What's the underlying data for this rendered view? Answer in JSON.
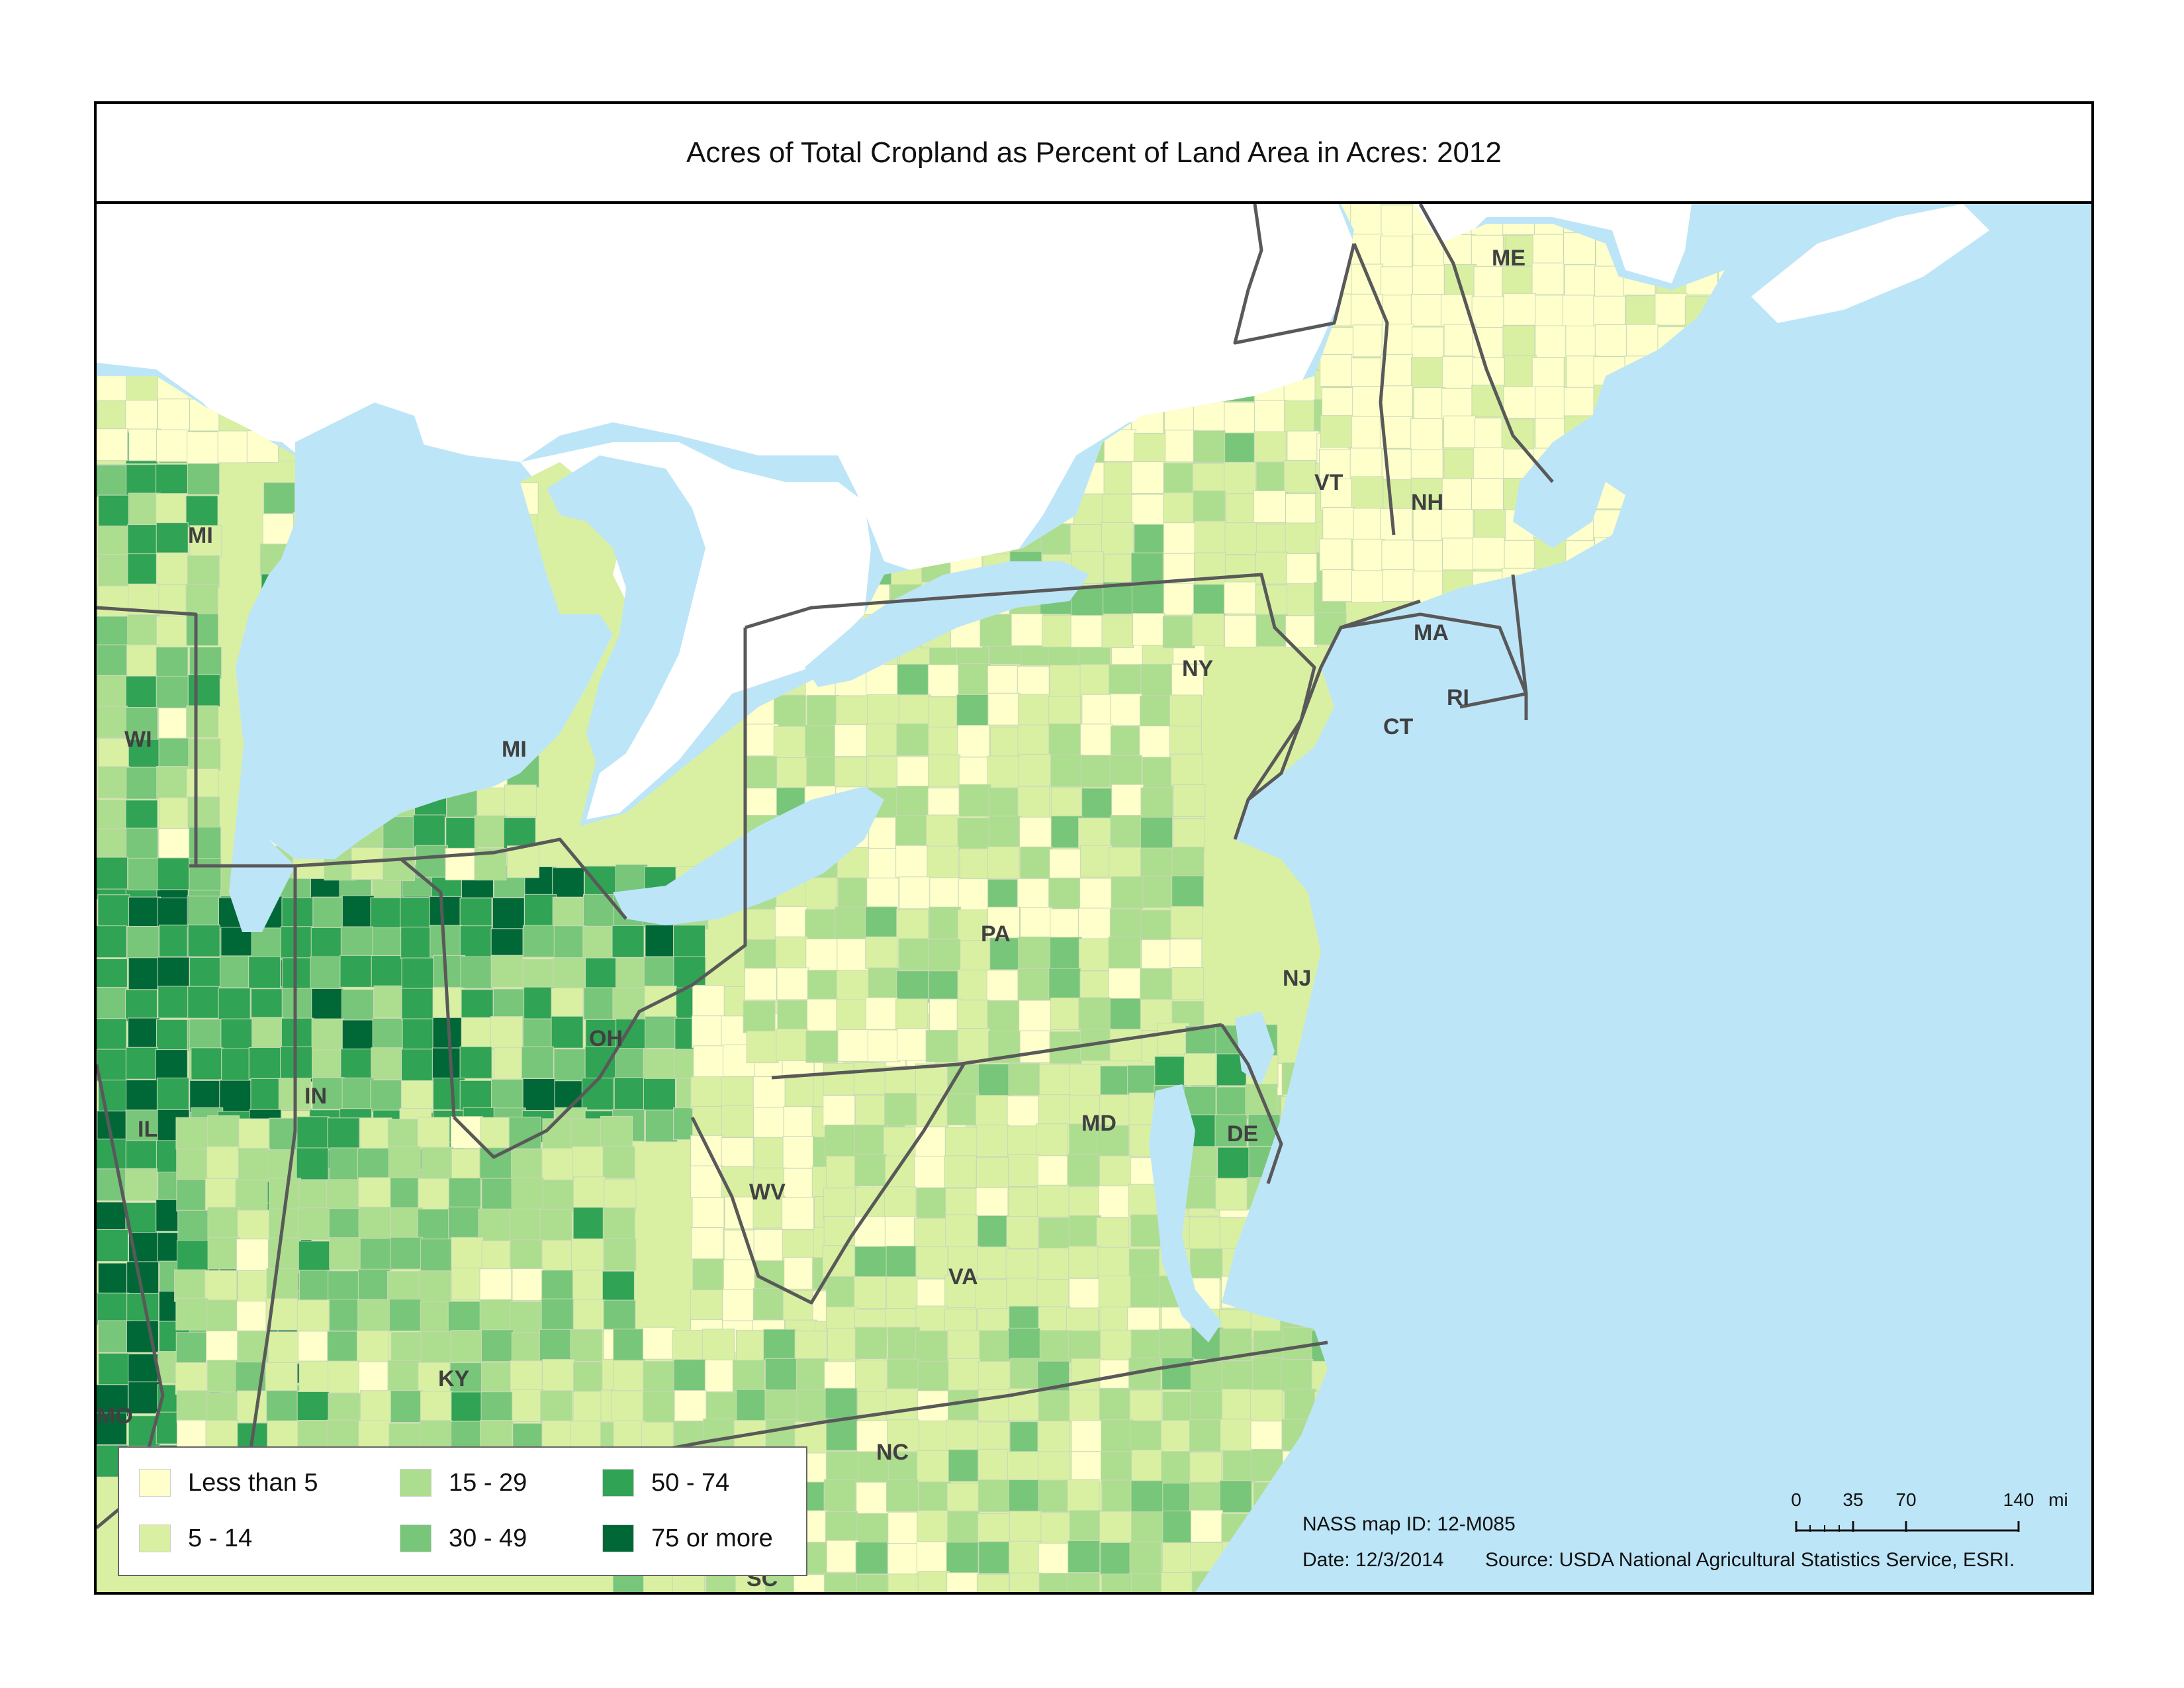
{
  "title": "Acres of Total Cropland as Percent of Land Area in Acres:  2012",
  "colors": {
    "water": "#bde5f8",
    "canada_land": "#ffffff",
    "state_border": "#595959",
    "class_less_than_5": "#ffffcc",
    "class_5_14": "#d9f0a3",
    "class_15_29": "#addd8e",
    "class_30_49": "#78c679",
    "class_50_74": "#31a354",
    "class_75_more": "#006837"
  },
  "state_labels": [
    "ME",
    "VT",
    "NH",
    "MA",
    "RI",
    "CT",
    "NY",
    "PA",
    "NJ",
    "DE",
    "MD",
    "OH",
    "MI",
    "MI",
    "WI",
    "IN",
    "IL",
    "WV",
    "VA",
    "KY",
    "NC",
    "SC",
    "MO"
  ],
  "legend": {
    "items": [
      {
        "label": "Less than 5",
        "color": "#ffffcc"
      },
      {
        "label": "5 - 14",
        "color": "#d9f0a3"
      },
      {
        "label": "15 - 29",
        "color": "#addd8e"
      },
      {
        "label": "30 - 49",
        "color": "#78c679"
      },
      {
        "label": "50 - 74",
        "color": "#31a354"
      },
      {
        "label": "75 or more",
        "color": "#006837"
      }
    ]
  },
  "footer": {
    "map_id": "NASS map ID: 12-M085",
    "date": "Date: 12/3/2014",
    "source": "Source: USDA National Agricultural Statistics Service, ESRI."
  },
  "scale_bar": {
    "ticks": [
      "0",
      "35",
      "70",
      "140"
    ],
    "unit": "mi"
  }
}
